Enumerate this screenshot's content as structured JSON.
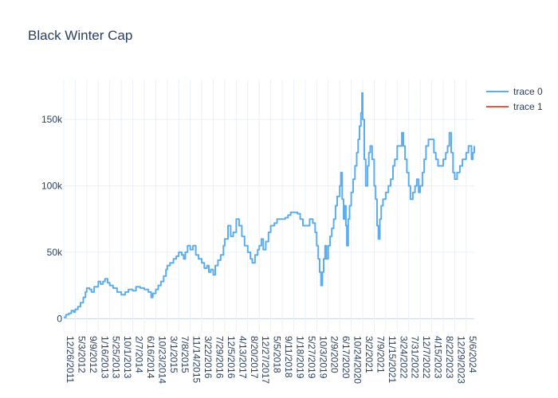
{
  "chart_data": {
    "type": "line",
    "title": "Black Winter Cap",
    "xlabel": "",
    "ylabel": "",
    "ylim": [
      -10000,
      180000
    ],
    "x_tick_labels": [
      "12/26/2011",
      "5/3/2012",
      "9/9/2012",
      "1/16/2013",
      "5/25/2013",
      "10/1/2013",
      "2/7/2014",
      "6/16/2014",
      "10/23/2014",
      "3/1/2015",
      "7/8/2015",
      "11/14/2015",
      "3/22/2016",
      "7/29/2016",
      "12/5/2016",
      "4/13/2017",
      "8/20/2017",
      "12/27/2017",
      "5/5/2018",
      "9/11/2018",
      "1/18/2019",
      "5/27/2019",
      "10/3/2019",
      "2/9/2020",
      "6/17/2020",
      "10/24/2020",
      "3/2/2021",
      "7/9/2021",
      "11/15/2021",
      "3/24/2022",
      "7/31/2022",
      "12/7/2022",
      "4/15/2023",
      "8/22/2023",
      "12/29/2023",
      "5/6/2024"
    ],
    "y_ticks": [
      0,
      50000,
      100000,
      150000
    ],
    "y_tick_labels": [
      "0",
      "50k",
      "100k",
      "150k"
    ],
    "legend": {
      "position": "top-right",
      "entries": [
        "trace 0",
        "trace 1"
      ]
    },
    "series": [
      {
        "name": "trace 0",
        "color": "#5DADEC",
        "points": [
          [
            "2011-12-26",
            1000
          ],
          [
            "2012-01-20",
            3000
          ],
          [
            "2012-02-20",
            4000
          ],
          [
            "2012-03-20",
            6000
          ],
          [
            "2012-04-15",
            5000
          ],
          [
            "2012-05-03",
            7000
          ],
          [
            "2012-06-01",
            9000
          ],
          [
            "2012-07-01",
            12000
          ],
          [
            "2012-08-01",
            16000
          ],
          [
            "2012-08-25",
            20000
          ],
          [
            "2012-09-09",
            23000
          ],
          [
            "2012-10-10",
            22000
          ],
          [
            "2012-11-01",
            20000
          ],
          [
            "2012-12-01",
            24000
          ],
          [
            "2013-01-16",
            28000
          ],
          [
            "2013-02-10",
            26000
          ],
          [
            "2013-03-10",
            28000
          ],
          [
            "2013-04-01",
            30000
          ],
          [
            "2013-05-01",
            27000
          ],
          [
            "2013-05-25",
            25000
          ],
          [
            "2013-07-01",
            23000
          ],
          [
            "2013-08-15",
            20000
          ],
          [
            "2013-10-01",
            18000
          ],
          [
            "2013-11-15",
            20000
          ],
          [
            "2013-12-20",
            22000
          ],
          [
            "2014-02-07",
            21000
          ],
          [
            "2014-03-15",
            24000
          ],
          [
            "2014-05-01",
            23000
          ],
          [
            "2014-06-16",
            22000
          ],
          [
            "2014-08-01",
            20000
          ],
          [
            "2014-09-01",
            16000
          ],
          [
            "2014-09-20",
            19000
          ],
          [
            "2014-10-23",
            22000
          ],
          [
            "2014-11-20",
            25000
          ],
          [
            "2014-12-20",
            28000
          ],
          [
            "2015-01-20",
            32000
          ],
          [
            "2015-02-15",
            37000
          ],
          [
            "2015-03-01",
            40000
          ],
          [
            "2015-04-01",
            42000
          ],
          [
            "2015-05-10",
            45000
          ],
          [
            "2015-06-10",
            47000
          ],
          [
            "2015-07-08",
            50000
          ],
          [
            "2015-08-10",
            48000
          ],
          [
            "2015-09-01",
            45000
          ],
          [
            "2015-09-20",
            50000
          ],
          [
            "2015-10-15",
            55000
          ],
          [
            "2015-11-14",
            52000
          ],
          [
            "2015-12-15",
            55000
          ],
          [
            "2016-01-15",
            48000
          ],
          [
            "2016-02-15",
            45000
          ],
          [
            "2016-03-22",
            42000
          ],
          [
            "2016-04-20",
            38000
          ],
          [
            "2016-05-20",
            40000
          ],
          [
            "2016-06-10",
            35000
          ],
          [
            "2016-07-01",
            37000
          ],
          [
            "2016-07-29",
            33000
          ],
          [
            "2016-08-20",
            40000
          ],
          [
            "2016-09-20",
            44000
          ],
          [
            "2016-10-20",
            48000
          ],
          [
            "2016-11-20",
            55000
          ],
          [
            "2016-12-05",
            60000
          ],
          [
            "2017-01-10",
            70000
          ],
          [
            "2017-02-10",
            62000
          ],
          [
            "2017-03-10",
            65000
          ],
          [
            "2017-04-13",
            75000
          ],
          [
            "2017-05-15",
            70000
          ],
          [
            "2017-06-15",
            62000
          ],
          [
            "2017-07-15",
            55000
          ],
          [
            "2017-08-20",
            50000
          ],
          [
            "2017-09-20",
            45000
          ],
          [
            "2017-10-10",
            42000
          ],
          [
            "2017-11-10",
            48000
          ],
          [
            "2017-12-10",
            52000
          ],
          [
            "2017-12-27",
            55000
          ],
          [
            "2018-01-20",
            60000
          ],
          [
            "2018-02-10",
            52000
          ],
          [
            "2018-03-10",
            58000
          ],
          [
            "2018-04-10",
            65000
          ],
          [
            "2018-05-05",
            70000
          ],
          [
            "2018-06-15",
            72000
          ],
          [
            "2018-07-15",
            75000
          ],
          [
            "2018-09-11",
            75000
          ],
          [
            "2018-10-15",
            76000
          ],
          [
            "2018-11-15",
            78000
          ],
          [
            "2018-12-15",
            80000
          ],
          [
            "2019-01-18",
            80000
          ],
          [
            "2019-03-01",
            79000
          ],
          [
            "2019-04-01",
            75000
          ],
          [
            "2019-05-01",
            70000
          ],
          [
            "2019-05-27",
            70000
          ],
          [
            "2019-07-01",
            70000
          ],
          [
            "2019-07-15",
            75000
          ],
          [
            "2019-08-20",
            72000
          ],
          [
            "2019-09-15",
            65000
          ],
          [
            "2019-10-03",
            55000
          ],
          [
            "2019-10-20",
            45000
          ],
          [
            "2019-11-05",
            35000
          ],
          [
            "2019-11-20",
            25000
          ],
          [
            "2019-12-05",
            35000
          ],
          [
            "2019-12-20",
            45000
          ],
          [
            "2020-01-05",
            55000
          ],
          [
            "2020-01-20",
            45000
          ],
          [
            "2020-02-09",
            55000
          ],
          [
            "2020-03-01",
            62000
          ],
          [
            "2020-03-20",
            68000
          ],
          [
            "2020-04-10",
            75000
          ],
          [
            "2020-05-01",
            85000
          ],
          [
            "2020-05-20",
            92000
          ],
          [
            "2020-06-17",
            100000
          ],
          [
            "2020-07-01",
            110000
          ],
          [
            "2020-07-15",
            90000
          ],
          [
            "2020-07-30",
            75000
          ],
          [
            "2020-08-10",
            85000
          ],
          [
            "2020-08-25",
            70000
          ],
          [
            "2020-09-05",
            55000
          ],
          [
            "2020-09-20",
            75000
          ],
          [
            "2020-10-05",
            85000
          ],
          [
            "2020-10-24",
            95000
          ],
          [
            "2020-11-15",
            105000
          ],
          [
            "2020-12-05",
            115000
          ],
          [
            "2020-12-25",
            125000
          ],
          [
            "2021-01-10",
            135000
          ],
          [
            "2021-01-25",
            145000
          ],
          [
            "2021-02-10",
            155000
          ],
          [
            "2021-02-22",
            170000
          ],
          [
            "2021-03-02",
            150000
          ],
          [
            "2021-03-20",
            120000
          ],
          [
            "2021-04-05",
            100000
          ],
          [
            "2021-04-25",
            115000
          ],
          [
            "2021-05-10",
            125000
          ],
          [
            "2021-05-25",
            130000
          ],
          [
            "2021-06-15",
            120000
          ],
          [
            "2021-07-09",
            100000
          ],
          [
            "2021-07-25",
            90000
          ],
          [
            "2021-08-10",
            70000
          ],
          [
            "2021-08-25",
            60000
          ],
          [
            "2021-09-10",
            75000
          ],
          [
            "2021-09-25",
            85000
          ],
          [
            "2021-10-15",
            90000
          ],
          [
            "2021-11-15",
            95000
          ],
          [
            "2021-12-15",
            100000
          ],
          [
            "2022-01-10",
            105000
          ],
          [
            "2022-02-05",
            115000
          ],
          [
            "2022-02-25",
            120000
          ],
          [
            "2022-03-24",
            130000
          ],
          [
            "2022-04-25",
            130000
          ],
          [
            "2022-05-15",
            140000
          ],
          [
            "2022-06-01",
            130000
          ],
          [
            "2022-06-20",
            120000
          ],
          [
            "2022-07-10",
            110000
          ],
          [
            "2022-07-31",
            100000
          ],
          [
            "2022-08-20",
            90000
          ],
          [
            "2022-09-15",
            95000
          ],
          [
            "2022-10-10",
            100000
          ],
          [
            "2022-10-30",
            105000
          ],
          [
            "2022-11-20",
            95000
          ],
          [
            "2022-12-07",
            100000
          ],
          [
            "2023-01-01",
            110000
          ],
          [
            "2023-01-20",
            120000
          ],
          [
            "2023-02-10",
            130000
          ],
          [
            "2023-03-10",
            135000
          ],
          [
            "2023-04-15",
            135000
          ],
          [
            "2023-05-10",
            125000
          ],
          [
            "2023-06-01",
            120000
          ],
          [
            "2023-06-25",
            115000
          ],
          [
            "2023-07-20",
            115000
          ],
          [
            "2023-08-22",
            120000
          ],
          [
            "2023-09-20",
            125000
          ],
          [
            "2023-10-10",
            130000
          ],
          [
            "2023-10-30",
            140000
          ],
          [
            "2023-11-20",
            125000
          ],
          [
            "2023-12-10",
            110000
          ],
          [
            "2023-12-29",
            105000
          ],
          [
            "2024-01-25",
            110000
          ],
          [
            "2024-02-25",
            115000
          ],
          [
            "2024-03-25",
            120000
          ],
          [
            "2024-04-20",
            120000
          ],
          [
            "2024-05-06",
            125000
          ],
          [
            "2024-06-01",
            130000
          ],
          [
            "2024-06-20",
            130000
          ],
          [
            "2024-07-05",
            120000
          ],
          [
            "2024-07-20",
            125000
          ],
          [
            "2024-08-05",
            130000
          ]
        ]
      },
      {
        "name": "trace 1",
        "color": "#EF553B",
        "points": []
      }
    ]
  }
}
